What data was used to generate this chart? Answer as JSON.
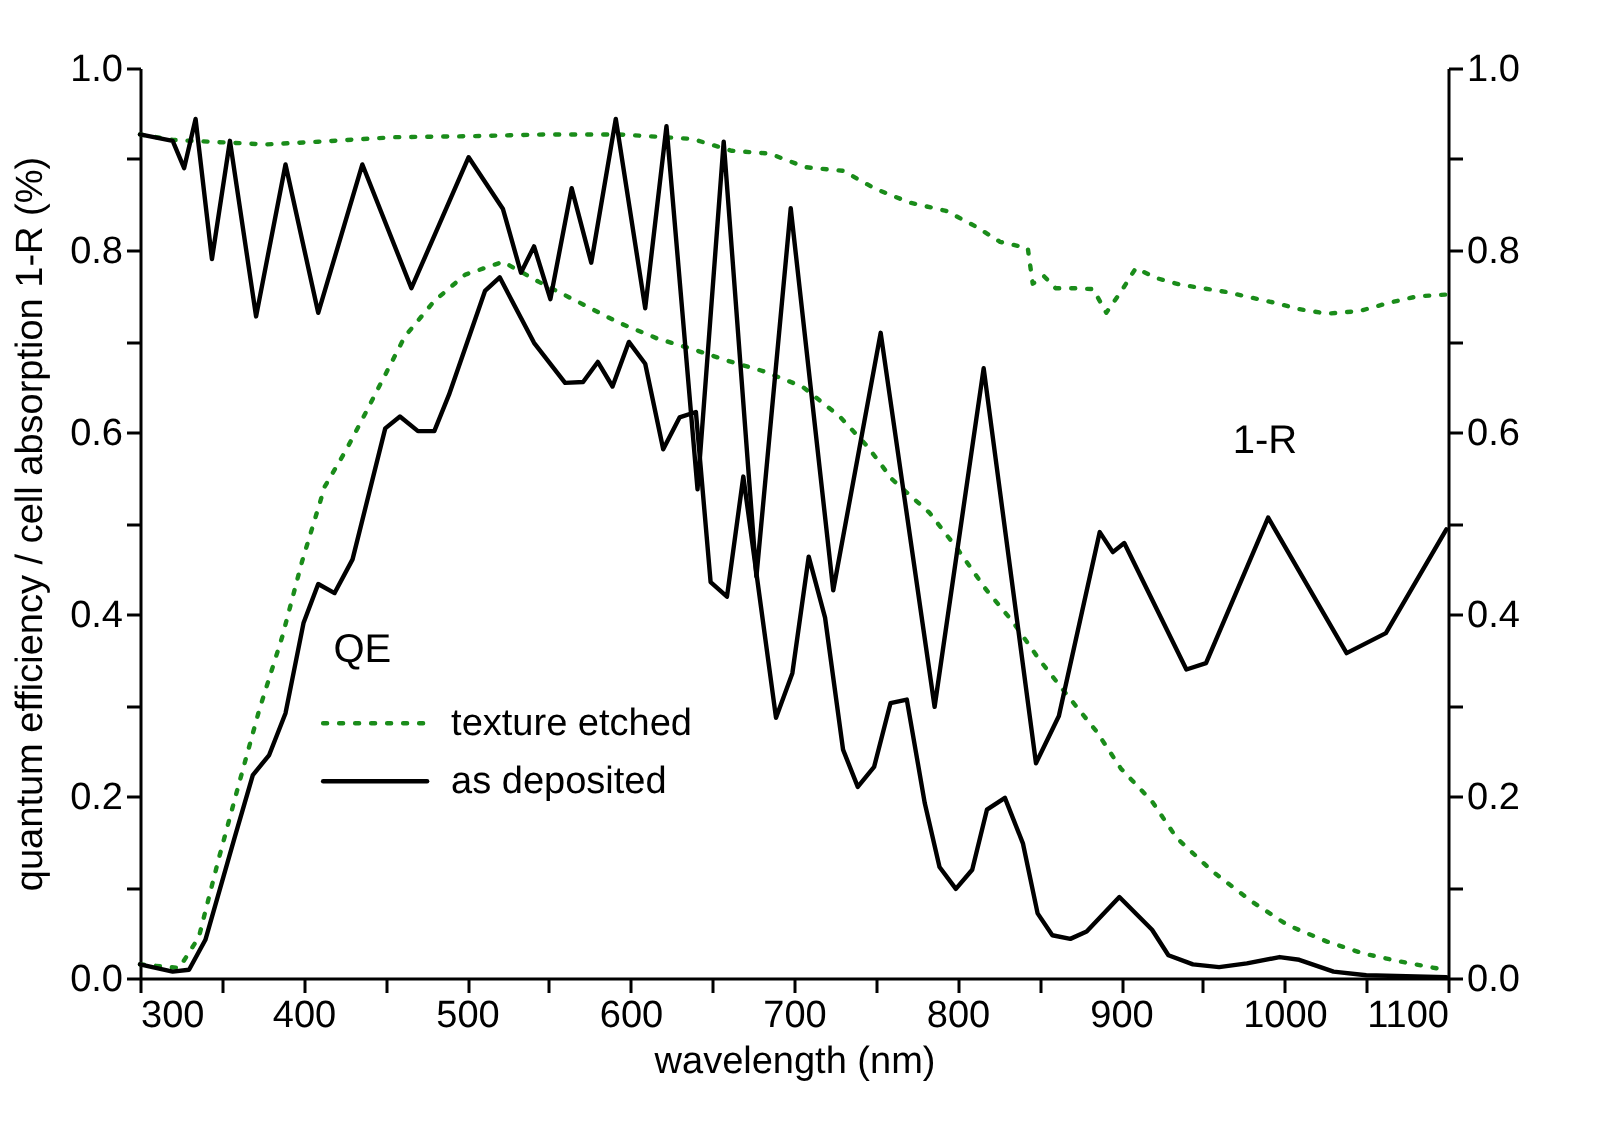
{
  "chart_data": {
    "type": "line",
    "xlabel": "wavelength (nm)",
    "ylabel": "quantum efficiency / cell absorption 1-R (%)",
    "xlim": [
      300,
      1100
    ],
    "xticks": [
      300,
      {
        "value": 350,
        "label": null
      },
      400,
      {
        "value": 450,
        "label": null
      },
      500,
      {
        "value": 550,
        "label": null
      },
      600,
      {
        "value": 650,
        "label": null
      },
      700,
      {
        "value": 750,
        "label": null
      },
      800,
      {
        "value": 850,
        "label": null
      },
      900,
      {
        "value": 950,
        "label": null
      },
      1000,
      {
        "value": 1050,
        "label": null
      },
      1100
    ],
    "ylim": [
      0,
      1.0
    ],
    "yticks": [
      {
        "value": 0,
        "label": "0.0"
      },
      {
        "value": 0.1,
        "label": null
      },
      0.2,
      {
        "value": 0.3,
        "label": null
      },
      0.4,
      {
        "value": 0.5,
        "label": null
      },
      0.6,
      {
        "value": 0.7,
        "label": null
      },
      0.8,
      {
        "value": 0.9,
        "label": null
      },
      {
        "value": 1.0,
        "label": "1.0"
      }
    ],
    "y2lim": [
      0,
      1.0
    ],
    "y2ticks": [
      {
        "value": 0,
        "label": "0.0"
      },
      {
        "value": 0.1,
        "label": null
      },
      0.2,
      {
        "value": 0.3,
        "label": null
      },
      0.4,
      {
        "value": 0.5,
        "label": null
      },
      0.6,
      {
        "value": 0.7,
        "label": null
      },
      0.8,
      {
        "value": 0.9,
        "label": null
      },
      {
        "value": 1.0,
        "label": "1.0"
      }
    ],
    "grid": false,
    "legend": "bottom left",
    "marker": "none",
    "annotations": [
      "QE",
      "1-R"
    ],
    "series": [
      {
        "name": "texture etched",
        "color": "#1a8c1a",
        "line_style": "dotted",
        "x": [
          300,
          324,
          336,
          348,
          360,
          373,
          387,
          399,
          413,
          426,
          438,
          450,
          462,
          480,
          499,
          522,
          544,
          569,
          593,
          616,
          638,
          660,
          681,
          705,
          728,
          745,
          760,
          783,
          801,
          817,
          834,
          850,
          867,
          885,
          900,
          919,
          934,
          956,
          980,
          1002,
          1026,
          1048,
          1071,
          1095
        ],
        "values": [
          0.015,
          0.011,
          0.045,
          0.13,
          0.21,
          0.295,
          0.375,
          0.457,
          0.54,
          0.58,
          0.621,
          0.663,
          0.705,
          0.744,
          0.773,
          0.787,
          0.765,
          0.742,
          0.72,
          0.703,
          0.691,
          0.678,
          0.667,
          0.65,
          0.617,
          0.584,
          0.548,
          0.511,
          0.469,
          0.428,
          0.391,
          0.35,
          0.311,
          0.271,
          0.23,
          0.194,
          0.154,
          0.117,
          0.084,
          0.058,
          0.04,
          0.027,
          0.018,
          0.01
        ]
      },
      {
        "name": "as deposited",
        "color": "#000000",
        "line_style": "solid",
        "x": [
          300,
          320,
          330,
          340,
          358,
          369,
          379,
          389,
          400,
          409,
          419,
          430,
          450,
          459,
          470,
          480,
          489,
          511,
          520,
          541,
          560,
          571,
          580,
          589,
          599,
          609,
          620,
          630,
          640,
          649,
          659,
          669,
          689,
          699,
          709,
          719,
          730,
          739,
          749,
          759,
          769,
          780,
          789,
          799,
          809,
          818,
          829,
          840,
          849,
          858,
          869,
          879,
          899,
          919,
          929,
          944,
          960,
          977,
          997,
          1009,
          1030,
          1050,
          1099
        ],
        "values": [
          0.015,
          0.007,
          0.009,
          0.042,
          0.155,
          0.223,
          0.245,
          0.291,
          0.39,
          0.433,
          0.423,
          0.46,
          0.604,
          0.617,
          0.601,
          0.601,
          0.641,
          0.755,
          0.77,
          0.698,
          0.654,
          0.655,
          0.677,
          0.65,
          0.699,
          0.675,
          0.581,
          0.616,
          0.622,
          0.435,
          0.419,
          0.551,
          0.286,
          0.335,
          0.463,
          0.396,
          0.251,
          0.21,
          0.232,
          0.302,
          0.306,
          0.192,
          0.122,
          0.098,
          0.119,
          0.185,
          0.198,
          0.148,
          0.071,
          0.047,
          0.043,
          0.051,
          0.089,
          0.053,
          0.025,
          0.015,
          0.012,
          0.016,
          0.023,
          0.02,
          0.007,
          0.003,
          0.001
        ]
      },
      {
        "color": "#1a8c1a",
        "line_style": "dotted",
        "x": [
          300,
          320,
          354,
          377,
          409,
          456,
          501,
          548,
          593,
          638,
          662,
          685,
          707,
          730,
          750,
          771,
          793,
          811,
          826,
          843,
          846,
          853,
          860,
          871,
          883,
          891,
          901,
          909,
          922,
          936,
          950,
          964,
          979,
          994,
          1009,
          1026,
          1046,
          1064,
          1081,
          1099
        ],
        "values": [
          0.927,
          0.921,
          0.918,
          0.916,
          0.919,
          0.924,
          0.925,
          0.927,
          0.927,
          0.922,
          0.909,
          0.906,
          0.891,
          0.887,
          0.867,
          0.852,
          0.843,
          0.826,
          0.809,
          0.802,
          0.763,
          0.771,
          0.758,
          0.758,
          0.757,
          0.731,
          0.757,
          0.78,
          0.769,
          0.762,
          0.758,
          0.754,
          0.748,
          0.742,
          0.735,
          0.73,
          0.733,
          0.742,
          0.749,
          0.751
        ]
      },
      {
        "color": "#000000",
        "line_style": "solid",
        "x": [
          300,
          320,
          327,
          334,
          344,
          355,
          371,
          389,
          409,
          436,
          466,
          501,
          522,
          533,
          541,
          551,
          564,
          576,
          591,
          609,
          622,
          641,
          657,
          677,
          698,
          724,
          753,
          786,
          816,
          848,
          862,
          887,
          895,
          902,
          940,
          952,
          990,
          1038,
          1062,
          1099
        ],
        "values": [
          0.927,
          0.92,
          0.89,
          0.944,
          0.79,
          0.92,
          0.727,
          0.894,
          0.731,
          0.894,
          0.758,
          0.902,
          0.845,
          0.775,
          0.804,
          0.746,
          0.868,
          0.786,
          0.944,
          0.736,
          0.936,
          0.537,
          0.919,
          0.441,
          0.846,
          0.426,
          0.709,
          0.298,
          0.67,
          0.236,
          0.288,
          0.49,
          0.468,
          0.478,
          0.339,
          0.346,
          0.506,
          0.357,
          0.379,
          0.493
        ]
      }
    ]
  }
}
